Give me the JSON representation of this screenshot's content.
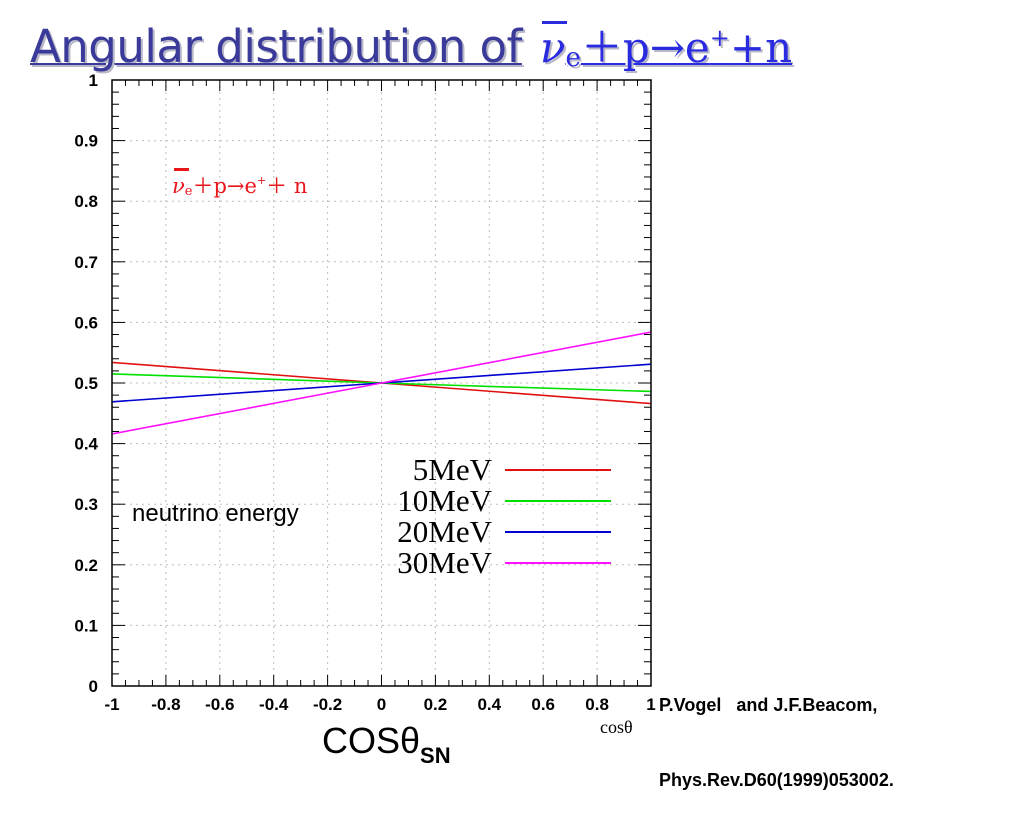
{
  "slide": {
    "title_text": "Angular distribution of",
    "title_formula": {
      "nu": "ν",
      "sub": "e",
      "reaction": "＋p→e",
      "sup": "+",
      "tail": "+n"
    }
  },
  "annotations": {
    "formula": {
      "nu": "ν",
      "sub": "e",
      "reaction": "＋p→e",
      "sup": "+",
      "tail": "＋ n"
    },
    "legend_title": "neutrino energy",
    "reference_line1": "P.Vogel   and J.F.Beacom,",
    "reference_line2": "Phys.Rev.D60(1999)053002.",
    "x_small_label": "cosθ",
    "x_label_main": "COSθ",
    "x_label_sub": "SN"
  },
  "chart_data": {
    "type": "line",
    "title": "",
    "xlabel": "cosθ",
    "ylabel": "",
    "xlim": [
      -1,
      1
    ],
    "ylim": [
      0,
      1
    ],
    "grid": true,
    "legend_position": "bottom-right",
    "x_ticks": [
      {
        "value": -1,
        "label": "-1"
      },
      {
        "value": -0.8,
        "label": "-0.8"
      },
      {
        "value": -0.6,
        "label": "-0.6"
      },
      {
        "value": -0.4,
        "label": "-0.4"
      },
      {
        "value": -0.2,
        "label": "-0.2"
      },
      {
        "value": 0,
        "label": "0"
      },
      {
        "value": 0.2,
        "label": "0.2"
      },
      {
        "value": 0.4,
        "label": "0.4"
      },
      {
        "value": 0.6,
        "label": "0.6"
      },
      {
        "value": 0.8,
        "label": "0.8"
      },
      {
        "value": 1,
        "label": "1"
      }
    ],
    "y_ticks": [
      {
        "value": 0,
        "label": "0"
      },
      {
        "value": 0.1,
        "label": "0.1"
      },
      {
        "value": 0.2,
        "label": "0.2"
      },
      {
        "value": 0.3,
        "label": "0.3"
      },
      {
        "value": 0.4,
        "label": "0.4"
      },
      {
        "value": 0.5,
        "label": "0.5"
      },
      {
        "value": 0.6,
        "label": "0.6"
      },
      {
        "value": 0.7,
        "label": "0.7"
      },
      {
        "value": 0.8,
        "label": "0.8"
      },
      {
        "value": 0.9,
        "label": "0.9"
      },
      {
        "value": 1,
        "label": "1"
      }
    ],
    "x": [
      -1,
      0,
      1
    ],
    "series": [
      {
        "name": "5MeV",
        "color": "#e01010",
        "values": [
          0.534,
          0.5,
          0.466
        ]
      },
      {
        "name": "10MeV",
        "color": "#00e000",
        "values": [
          0.515,
          0.5,
          0.486
        ]
      },
      {
        "name": "20MeV",
        "color": "#0000d0",
        "values": [
          0.469,
          0.5,
          0.531
        ]
      },
      {
        "name": "30MeV",
        "color": "#ff10ff",
        "values": [
          0.416,
          0.5,
          0.584
        ]
      }
    ]
  }
}
